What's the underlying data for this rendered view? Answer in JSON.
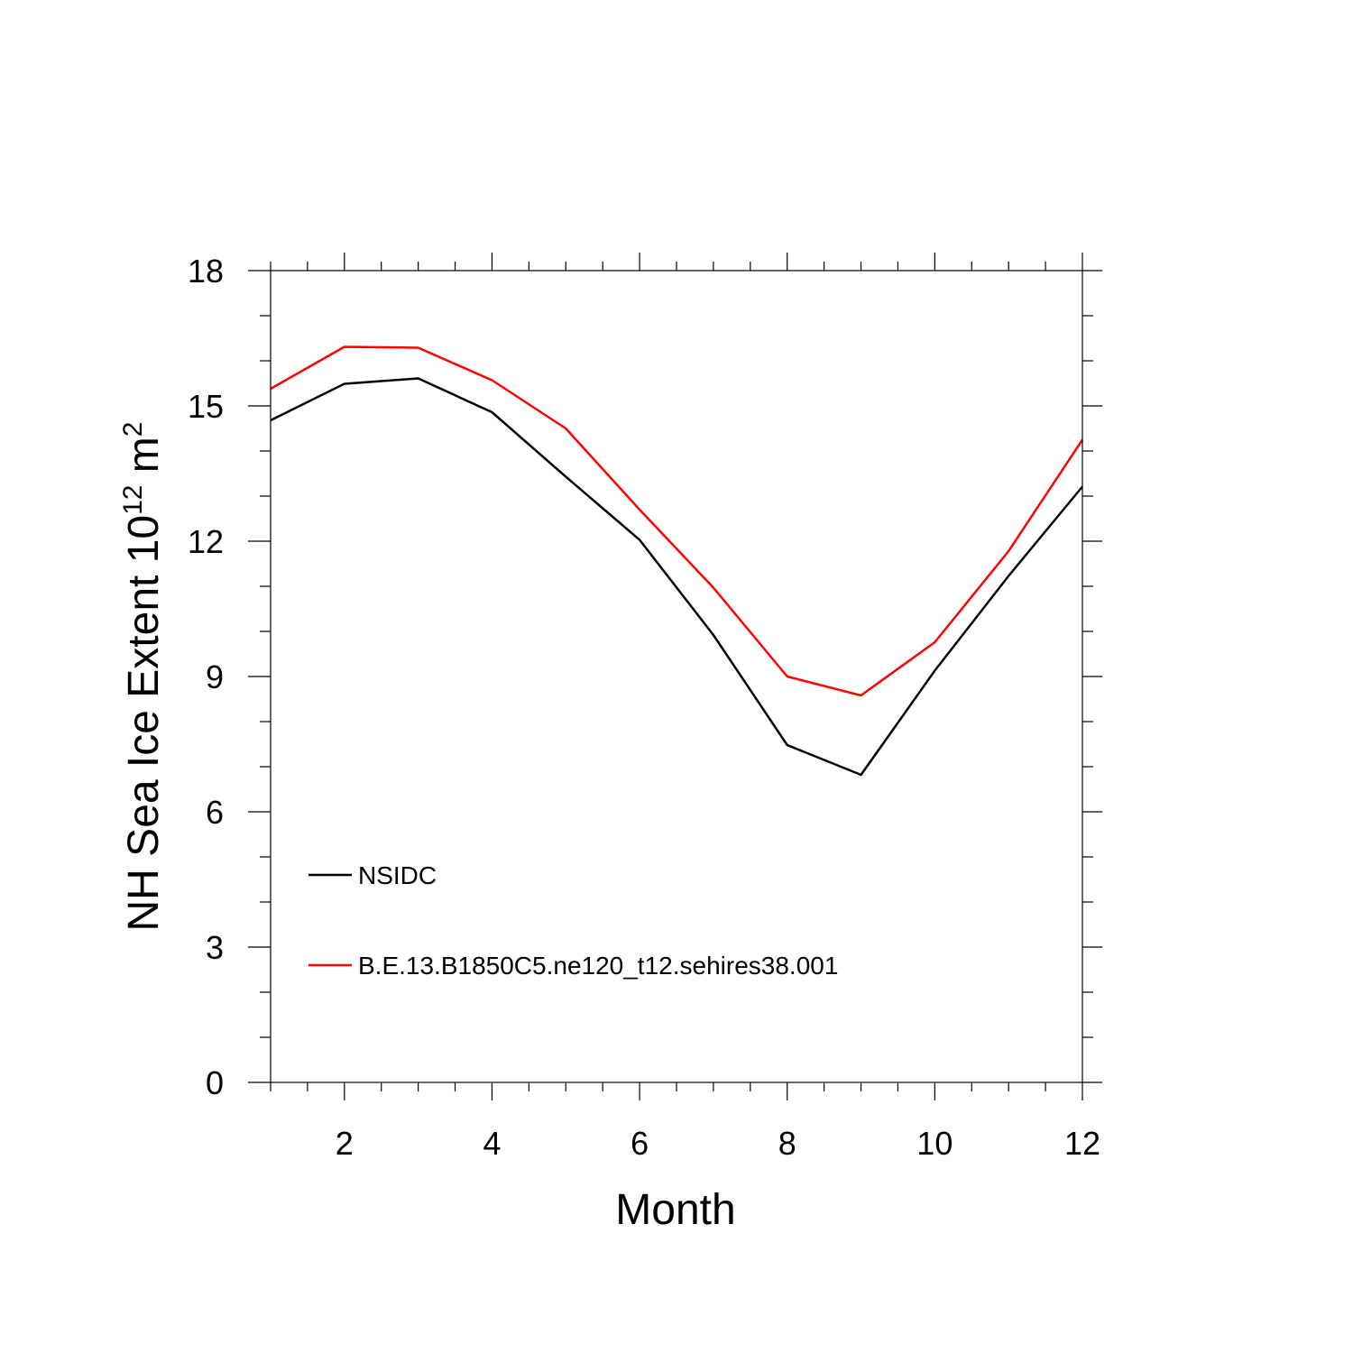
{
  "chart_data": {
    "type": "line",
    "xlabel": "Month",
    "ylabel": {
      "main": "NH Sea Ice Extent 10",
      "sup1": "12",
      "unit": " m",
      "sup2": "2"
    },
    "xlim": [
      1,
      12
    ],
    "ylim": [
      0,
      18
    ],
    "xticks": [
      2,
      4,
      6,
      8,
      10,
      12
    ],
    "yticks": [
      0,
      3,
      6,
      9,
      12,
      15,
      18
    ],
    "legend_position": "lower-left",
    "grid": false,
    "x": [
      1,
      2,
      3,
      4,
      5,
      6,
      7,
      8,
      9,
      10,
      11,
      12
    ],
    "series": [
      {
        "name": "NSIDC",
        "color": "#000000",
        "values": [
          14.68,
          15.49,
          15.61,
          14.86,
          13.43,
          12.03,
          9.92,
          7.48,
          6.82,
          9.13,
          11.23,
          13.21
        ]
      },
      {
        "name": "B.E.13.B1850C5.ne120_t12.sehires38.001",
        "color": "#ff0000",
        "values": [
          15.38,
          16.31,
          16.29,
          15.57,
          14.5,
          12.7,
          10.97,
          9.0,
          8.58,
          9.76,
          11.78,
          14.25
        ]
      }
    ]
  }
}
